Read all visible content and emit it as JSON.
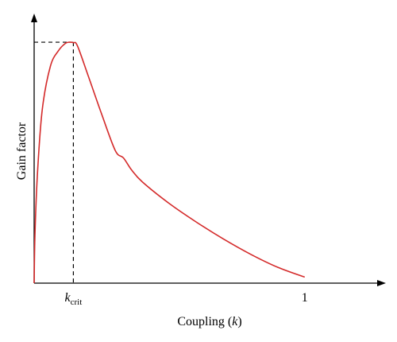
{
  "chart_data": {
    "type": "line",
    "xlabel": "Coupling (k)",
    "xlabel_parts": {
      "prefix": "Coupling (",
      "var": "k",
      "suffix": ")"
    },
    "ylabel": "Gain factor",
    "x_ticks": [
      {
        "value": 0.145,
        "label": "k_crit",
        "main": "k",
        "sub": "crit"
      },
      {
        "value": 1,
        "label": "1"
      }
    ],
    "xlim": [
      0,
      1.3
    ],
    "ylim": [
      0,
      1.03
    ],
    "y_ticks": [],
    "grid": false,
    "legend": "none",
    "series": [
      {
        "color": "#d42a2a",
        "x": [
          0,
          0.003,
          0.012,
          0.03,
          0.06,
          0.09,
          0.115,
          0.13,
          0.145,
          0.16,
          0.2,
          0.25,
          0.3,
          0.33,
          0.36,
          0.4,
          0.5,
          0.6,
          0.7,
          0.8,
          0.9,
          1.0
        ],
        "y": [
          0,
          0.2,
          0.45,
          0.72,
          0.9,
          0.965,
          0.995,
          1.0,
          0.998,
          0.985,
          0.86,
          0.7,
          0.55,
          0.52,
          0.47,
          0.42,
          0.33,
          0.253,
          0.183,
          0.12,
          0.066,
          0.025
        ]
      }
    ],
    "annotations": [
      {
        "type": "dashed-guide",
        "x": 0.145,
        "y": 1.0,
        "color": "#000000"
      }
    ]
  }
}
